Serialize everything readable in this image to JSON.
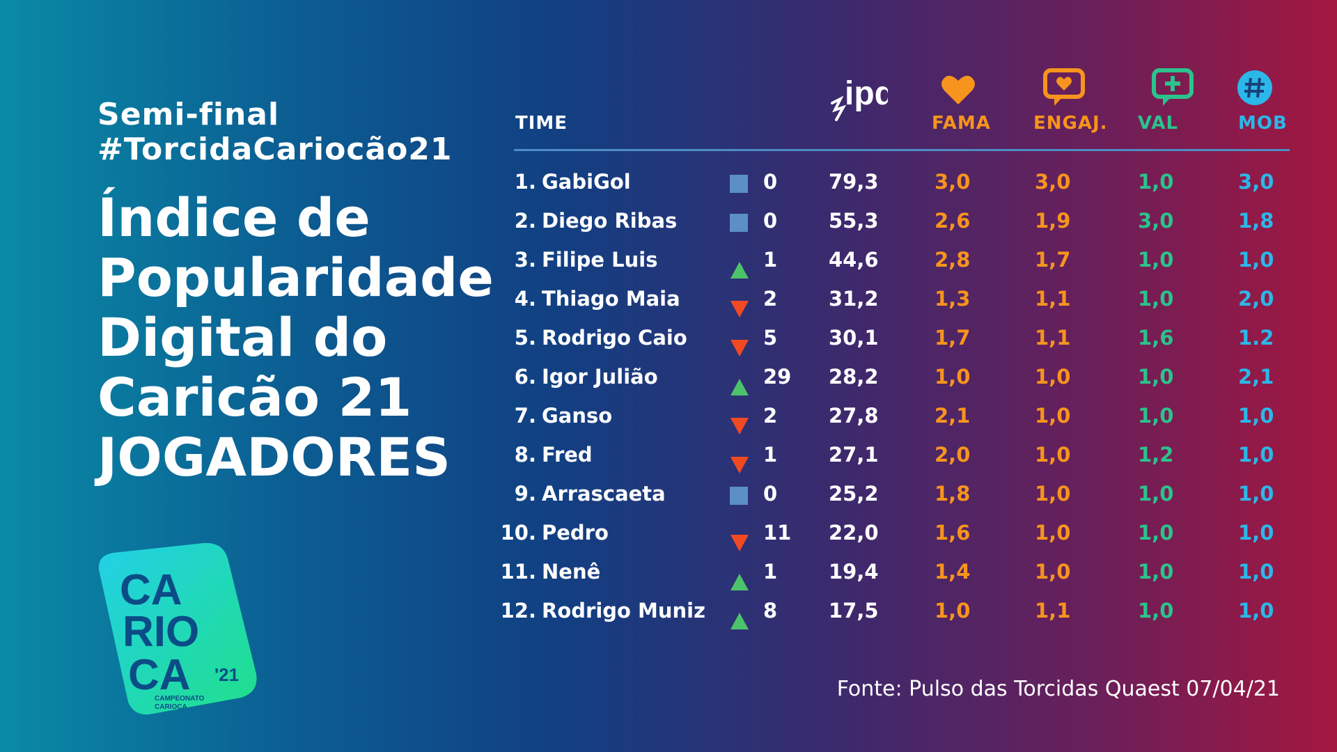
{
  "header": {
    "subtitle1": "Semi-final",
    "subtitle2": "#TorcidaCariocão21",
    "title_lines": [
      "Índice de",
      "Popularidade",
      "Digital do",
      "Caricão 21",
      "JOGADORES"
    ]
  },
  "table": {
    "col_time": "TIME",
    "col_ipd": "ipd",
    "col_fama": "FAMA",
    "col_engaj": "ENGAJ.",
    "col_val": "VAL",
    "col_mob": "MOB",
    "rows": [
      {
        "rank": "1.",
        "name": "GabiGol",
        "trend": "same",
        "change": "0",
        "ipd": "79,3",
        "fama": "3,0",
        "engaj": "3,0",
        "val": "1,0",
        "mob": "3,0"
      },
      {
        "rank": "2.",
        "name": "Diego Ribas",
        "trend": "same",
        "change": "0",
        "ipd": "55,3",
        "fama": "2,6",
        "engaj": "1,9",
        "val": "3,0",
        "mob": "1,8"
      },
      {
        "rank": "3.",
        "name": "Filipe Luis",
        "trend": "up",
        "change": "1",
        "ipd": "44,6",
        "fama": "2,8",
        "engaj": "1,7",
        "val": "1,0",
        "mob": "1,0"
      },
      {
        "rank": "4.",
        "name": "Thiago Maia",
        "trend": "down",
        "change": "2",
        "ipd": "31,2",
        "fama": "1,3",
        "engaj": "1,1",
        "val": "1,0",
        "mob": "2,0"
      },
      {
        "rank": "5.",
        "name": "Rodrigo Caio",
        "trend": "down",
        "change": "5",
        "ipd": "30,1",
        "fama": "1,7",
        "engaj": "1,1",
        "val": "1,6",
        "mob": "1.2"
      },
      {
        "rank": "6.",
        "name": "Igor Julião",
        "trend": "up",
        "change": "29",
        "ipd": "28,2",
        "fama": "1,0",
        "engaj": "1,0",
        "val": "1,0",
        "mob": "2,1"
      },
      {
        "rank": "7.",
        "name": "Ganso",
        "trend": "down",
        "change": "2",
        "ipd": "27,8",
        "fama": "2,1",
        "engaj": "1,0",
        "val": "1,0",
        "mob": "1,0"
      },
      {
        "rank": "8.",
        "name": "Fred",
        "trend": "down",
        "change": "1",
        "ipd": "27,1",
        "fama": "2,0",
        "engaj": "1,0",
        "val": "1,2",
        "mob": "1,0"
      },
      {
        "rank": "9.",
        "name": "Arrascaeta",
        "trend": "same",
        "change": "0",
        "ipd": "25,2",
        "fama": "1,8",
        "engaj": "1,0",
        "val": "1,0",
        "mob": "1,0"
      },
      {
        "rank": "10.",
        "name": "Pedro",
        "trend": "down",
        "change": "11",
        "ipd": "22,0",
        "fama": "1,6",
        "engaj": "1,0",
        "val": "1,0",
        "mob": "1,0"
      },
      {
        "rank": "11.",
        "name": "Nenê",
        "trend": "up",
        "change": "1",
        "ipd": "19,4",
        "fama": "1,4",
        "engaj": "1,0",
        "val": "1,0",
        "mob": "1,0"
      },
      {
        "rank": "12.",
        "name": "Rodrigo Muniz",
        "trend": "up",
        "change": "8",
        "ipd": "17,5",
        "fama": "1,0",
        "engaj": "1,1",
        "val": "1,0",
        "mob": "1,0"
      }
    ]
  },
  "logo": {
    "text_lines": [
      "CA",
      "RIO",
      "CA",
      "'21"
    ],
    "caption_lines": [
      "CAMPEONATO",
      "CARIOCA"
    ]
  },
  "source": "Fonte: Pulso das Torcidas Quaest 07/04/21",
  "colors": {
    "fama": "#f7941d",
    "engaj": "#f7941d",
    "val": "#2bc38c",
    "mob": "#2bb7e8",
    "up": "#4cc36a",
    "down": "#f04a23",
    "same": "#5b8fc6"
  }
}
